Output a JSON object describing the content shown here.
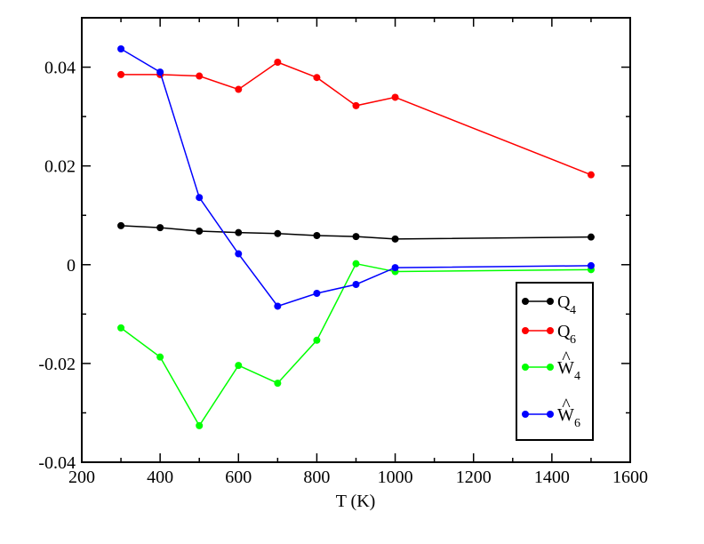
{
  "chart_data": {
    "type": "line",
    "xlabel": "T (K)",
    "ylabel": "",
    "xlim": [
      200,
      1600
    ],
    "ylim": [
      -0.04,
      0.05
    ],
    "x_ticks": [
      "200",
      "400",
      "600",
      "800",
      "1000",
      "1200",
      "1400",
      "1600"
    ],
    "y_ticks": [
      "-0.04",
      "-0.02",
      "0",
      "0.02",
      "0.04"
    ],
    "x_tick_values": [
      200,
      400,
      600,
      800,
      1000,
      1200,
      1400,
      1600
    ],
    "y_tick_values": [
      -0.04,
      -0.02,
      0,
      0.02,
      0.04
    ],
    "grid": false,
    "legend_position": "bottom-right",
    "x": [
      300,
      400,
      500,
      600,
      700,
      800,
      900,
      1000,
      1500
    ],
    "series": [
      {
        "name": "Q4",
        "label_main": "Q",
        "label_sub": "4",
        "hat": false,
        "color": "#000000",
        "values": [
          0.0079,
          0.0075,
          0.0068,
          0.0065,
          0.0063,
          0.0059,
          0.0057,
          0.0052,
          0.0056
        ]
      },
      {
        "name": "Q6",
        "label_main": "Q",
        "label_sub": "6",
        "hat": false,
        "color": "#ff0000",
        "values": [
          0.0385,
          0.0385,
          0.0382,
          0.0355,
          0.041,
          0.0379,
          0.0322,
          0.0339,
          0.0182
        ]
      },
      {
        "name": "Ŵ4",
        "label_main": "W",
        "label_sub": "4",
        "hat": true,
        "color": "#00ff00",
        "values": [
          -0.0128,
          -0.0187,
          -0.0326,
          -0.0204,
          -0.024,
          -0.0153,
          0.0002,
          -0.0014,
          -0.001
        ]
      },
      {
        "name": "Ŵ6",
        "label_main": "W",
        "label_sub": "6",
        "hat": true,
        "color": "#0000ff",
        "values": [
          0.0437,
          0.039,
          0.0136,
          0.0022,
          -0.0084,
          -0.0058,
          -0.004,
          -0.0006,
          -0.0002
        ]
      }
    ]
  }
}
